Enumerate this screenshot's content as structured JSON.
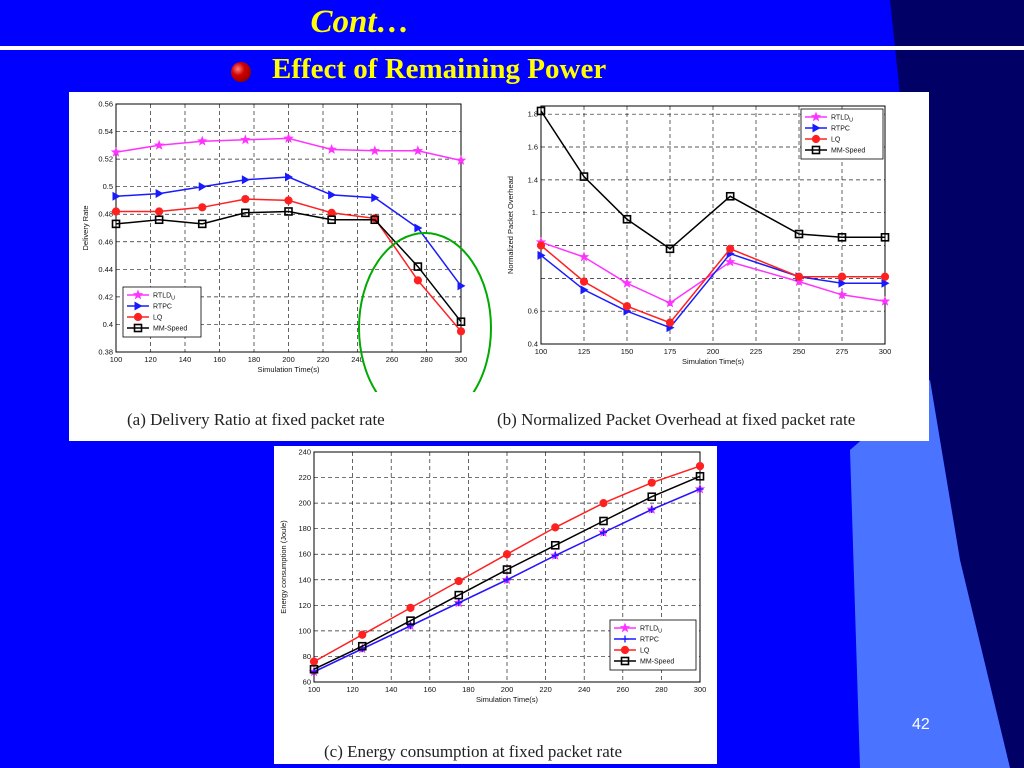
{
  "slide": {
    "title": "Cont…",
    "subtitle": "Effect of Remaining Power",
    "page_number": "42"
  },
  "captions": {
    "a": "(a) Delivery Ratio at fixed packet rate",
    "b": "(b) Normalized Packet Overhead at fixed packet rate",
    "c": "(c) Energy consumption at fixed packet rate"
  },
  "colors": {
    "RTLDU": "#ff33ff",
    "RTPC": "#1a1aff",
    "LQ": "#ff2020",
    "MM-Speed": "#000000",
    "highlight_ellipse": "#00aa00"
  },
  "chart_data": [
    {
      "id": "a",
      "type": "line",
      "xlabel": "Simulation Time(s)",
      "ylabel": "Delivery Rate",
      "xlim": [
        100,
        300
      ],
      "ylim": [
        0.38,
        0.56
      ],
      "xticks": [
        100,
        120,
        140,
        160,
        180,
        200,
        220,
        240,
        260,
        280,
        300
      ],
      "yticks": [
        0.38,
        0.4,
        0.42,
        0.44,
        0.46,
        0.48,
        0.5,
        0.52,
        0.54,
        0.56
      ],
      "ytick_labels": [
        "0.38",
        "0.4",
        "0.42",
        "0.44",
        "0.46",
        "0.48",
        "0.5",
        "0.52",
        "0.54",
        "0.56"
      ],
      "grid": true,
      "legend_position": "bottom-left",
      "x": [
        100,
        125,
        150,
        175,
        200,
        225,
        250,
        275,
        300
      ],
      "series": [
        {
          "name": "RTLDU",
          "marker": "star",
          "values": [
            0.525,
            0.53,
            0.533,
            0.534,
            0.535,
            0.527,
            0.526,
            0.526,
            0.519
          ]
        },
        {
          "name": "RTPC",
          "marker": "triangle",
          "values": [
            0.493,
            0.495,
            0.5,
            0.505,
            0.507,
            0.494,
            0.492,
            0.47,
            0.428
          ]
        },
        {
          "name": "LQ",
          "marker": "circle",
          "values": [
            0.482,
            0.482,
            0.485,
            0.491,
            0.49,
            0.481,
            0.477,
            0.432,
            0.395
          ]
        },
        {
          "name": "MM-Speed",
          "marker": "square",
          "values": [
            0.473,
            0.476,
            0.473,
            0.481,
            0.482,
            0.476,
            0.476,
            0.442,
            0.402
          ]
        }
      ]
    },
    {
      "id": "b",
      "type": "line",
      "xlabel": "Simulation Time(s)",
      "ylabel": "Normalized Packet Overhead",
      "xlim": [
        100,
        300
      ],
      "ylim": [
        0.4,
        1.85
      ],
      "xticks": [
        100,
        125,
        150,
        175,
        200,
        225,
        250,
        275,
        300
      ],
      "yticks": [
        0.4,
        0.6,
        0.8,
        1.0,
        1.2,
        1.4,
        1.6,
        1.8
      ],
      "ytick_labels": [
        "0.4",
        "0.6",
        "",
        "",
        "1.",
        "1.4",
        "1.6",
        "1.8"
      ],
      "grid": true,
      "legend_position": "top-right",
      "x": [
        100,
        125,
        150,
        175,
        210,
        250,
        275,
        300
      ],
      "series": [
        {
          "name": "RTLDU",
          "marker": "star",
          "values": [
            1.02,
            0.93,
            0.77,
            0.65,
            0.9,
            0.78,
            0.7,
            0.66
          ]
        },
        {
          "name": "RTPC",
          "marker": "triangle",
          "values": [
            0.94,
            0.73,
            0.6,
            0.5,
            0.95,
            0.81,
            0.77,
            0.77
          ]
        },
        {
          "name": "LQ",
          "marker": "circle",
          "values": [
            1.0,
            0.78,
            0.63,
            0.53,
            0.98,
            0.81,
            0.81,
            0.81
          ]
        },
        {
          "name": "MM-Speed",
          "marker": "square",
          "values": [
            1.82,
            1.42,
            1.16,
            0.98,
            1.3,
            1.07,
            1.05,
            1.05
          ]
        }
      ]
    },
    {
      "id": "c",
      "type": "line",
      "xlabel": "Simulation Time(s)",
      "ylabel": "Energy consumption (Joule)",
      "xlim": [
        100,
        300
      ],
      "ylim": [
        60,
        240
      ],
      "xticks": [
        100,
        120,
        140,
        160,
        180,
        200,
        220,
        240,
        260,
        280,
        300
      ],
      "yticks": [
        60,
        80,
        100,
        120,
        140,
        160,
        180,
        200,
        220,
        240
      ],
      "ytick_labels": [
        "60",
        "80",
        "100",
        "120",
        "140",
        "160",
        "180",
        "200",
        "220",
        "240"
      ],
      "grid": true,
      "legend_position": "bottom-right",
      "x": [
        100,
        125,
        150,
        175,
        200,
        225,
        250,
        275,
        300
      ],
      "series": [
        {
          "name": "RTLDU",
          "marker": "star",
          "values": [
            68,
            86,
            104,
            122,
            140,
            159,
            177,
            195,
            211
          ]
        },
        {
          "name": "RTPC",
          "marker": "plus",
          "values": [
            68,
            86,
            104,
            122,
            140,
            159,
            177,
            195,
            211
          ]
        },
        {
          "name": "LQ",
          "marker": "circle",
          "values": [
            76,
            97,
            118,
            139,
            160,
            181,
            200,
            216,
            229
          ]
        },
        {
          "name": "MM-Speed",
          "marker": "square",
          "values": [
            70,
            88,
            108,
            128,
            148,
            167,
            186,
            205,
            221
          ]
        }
      ]
    }
  ]
}
